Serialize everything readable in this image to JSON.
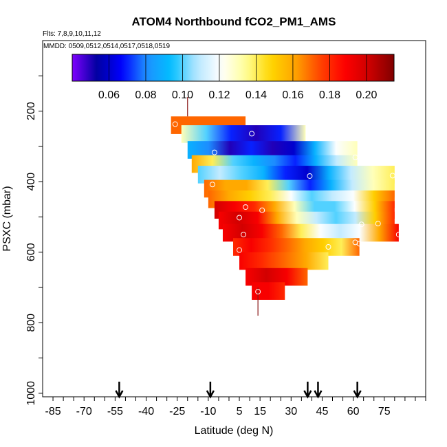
{
  "chart_data": {
    "type": "heatmap",
    "title": "ATOM4 Northbound fCO2_PM1_AMS",
    "flights_label": "Flts: 7,8,9,10,11,12",
    "dates_label": "MMDD: 0509,0512,0514,0517,0518,0519",
    "xlabel": "Latitude (deg N)",
    "ylabel": "PSXC (mbar)",
    "xlim": [
      -90,
      95
    ],
    "ylim_reversed": [
      1010,
      0
    ],
    "x_ticks": [
      -85,
      -70,
      -55,
      -40,
      -25,
      -10,
      5,
      15,
      30,
      45,
      60,
      75
    ],
    "y_ticks": [
      200,
      400,
      600,
      800,
      1000
    ],
    "colorbar": {
      "range": [
        0.04,
        0.215
      ],
      "ticks": [
        0.06,
        0.08,
        0.1,
        0.12,
        0.14,
        0.16,
        0.18,
        0.2
      ],
      "tick_labels": [
        "0.06",
        "0.08",
        "0.10",
        "0.12",
        "0.14",
        "0.16",
        "0.18",
        "0.20"
      ],
      "colors": [
        "#7f00ff",
        "#0000a0",
        "#0000ff",
        "#1e90ff",
        "#00bfff",
        "#b4e6ff",
        "#ffffff",
        "#ffff99",
        "#ffd700",
        "#ffa500",
        "#ff4500",
        "#ff0000",
        "#cc0000",
        "#800000"
      ]
    },
    "bands": [
      {
        "p": 240,
        "x0": -28,
        "x1": 8,
        "stops": [
          0.17,
          0.17,
          0.17,
          0.17
        ]
      },
      {
        "p": 265,
        "x0": -23,
        "x1": 37,
        "stops": [
          0.13,
          0.1,
          0.07,
          0.05,
          0.07,
          0.13
        ]
      },
      {
        "p": 310,
        "x0": -20,
        "x1": 62,
        "stops": [
          0.09,
          0.08,
          0.05,
          0.07,
          0.05,
          0.06,
          0.09,
          0.12,
          0.13
        ]
      },
      {
        "p": 350,
        "x0": -18,
        "x1": 62,
        "stops": [
          0.16,
          0.14,
          0.1,
          0.09,
          0.08,
          0.07,
          0.09,
          0.11,
          0.13
        ]
      },
      {
        "p": 380,
        "x0": -15,
        "x1": 80,
        "stops": [
          0.1,
          0.11,
          0.1,
          0.09,
          0.07,
          0.06,
          0.09,
          0.11,
          0.13,
          0.14
        ]
      },
      {
        "p": 420,
        "x0": -12,
        "x1": 80,
        "stops": [
          0.17,
          0.16,
          0.16,
          0.14,
          0.1,
          0.07,
          0.09,
          0.11,
          0.13,
          0.14
        ]
      },
      {
        "p": 450,
        "x0": -10,
        "x1": 80,
        "stops": [
          0.17,
          0.16,
          0.15,
          0.14,
          0.12,
          0.1,
          0.11,
          0.12,
          0.15,
          0.17
        ]
      },
      {
        "p": 480,
        "x0": -7,
        "x1": 80,
        "stops": [
          0.2,
          0.19,
          0.18,
          0.16,
          0.13,
          0.1,
          0.1,
          0.12,
          0.15,
          0.18
        ]
      },
      {
        "p": 510,
        "x0": -5,
        "x1": 80,
        "stops": [
          0.19,
          0.2,
          0.19,
          0.16,
          0.13,
          0.11,
          0.1,
          0.11,
          0.15,
          0.18
        ]
      },
      {
        "p": 545,
        "x0": -3,
        "x1": 82,
        "stops": [
          0.19,
          0.2,
          0.19,
          0.17,
          0.14,
          0.12,
          0.11,
          0.12,
          0.16,
          0.19
        ]
      },
      {
        "p": 585,
        "x0": 2,
        "x1": 63,
        "stops": [
          0.18,
          0.19,
          0.18,
          0.17,
          0.16,
          0.15,
          0.14,
          0.17
        ]
      },
      {
        "p": 625,
        "x0": 5,
        "x1": 48,
        "stops": [
          0.19,
          0.18,
          0.17,
          0.16,
          0.14
        ]
      },
      {
        "p": 670,
        "x0": 8,
        "x1": 38,
        "stops": [
          0.19,
          0.2,
          0.19,
          0.17
        ]
      },
      {
        "p": 710,
        "x0": 11,
        "x1": 27,
        "stops": [
          0.19,
          0.19,
          0.18
        ]
      }
    ],
    "band_height_mbar": 50,
    "points": [
      {
        "lat": -26,
        "p": 237
      },
      {
        "lat": 11,
        "p": 264
      },
      {
        "lat": -7,
        "p": 317
      },
      {
        "lat": 61,
        "p": 331
      },
      {
        "lat": 39,
        "p": 384
      },
      {
        "lat": 79,
        "p": 383
      },
      {
        "lat": -8,
        "p": 408
      },
      {
        "lat": 8,
        "p": 472
      },
      {
        "lat": 16,
        "p": 481
      },
      {
        "lat": 5,
        "p": 502
      },
      {
        "lat": 64,
        "p": 521
      },
      {
        "lat": 72,
        "p": 519
      },
      {
        "lat": 7,
        "p": 550
      },
      {
        "lat": 82,
        "p": 550
      },
      {
        "lat": 61,
        "p": 572
      },
      {
        "lat": 63,
        "p": 576
      },
      {
        "lat": 48,
        "p": 585
      },
      {
        "lat": 5,
        "p": 594
      },
      {
        "lat": 14,
        "p": 712
      }
    ],
    "profile_markers": [
      {
        "lat": -20,
        "p_top": 160,
        "p_bottom": 215
      },
      {
        "lat": 14,
        "p_top": 700,
        "p_bottom": 780
      }
    ],
    "flight_arrows_lat": [
      -53,
      -9,
      38,
      43,
      62
    ]
  }
}
